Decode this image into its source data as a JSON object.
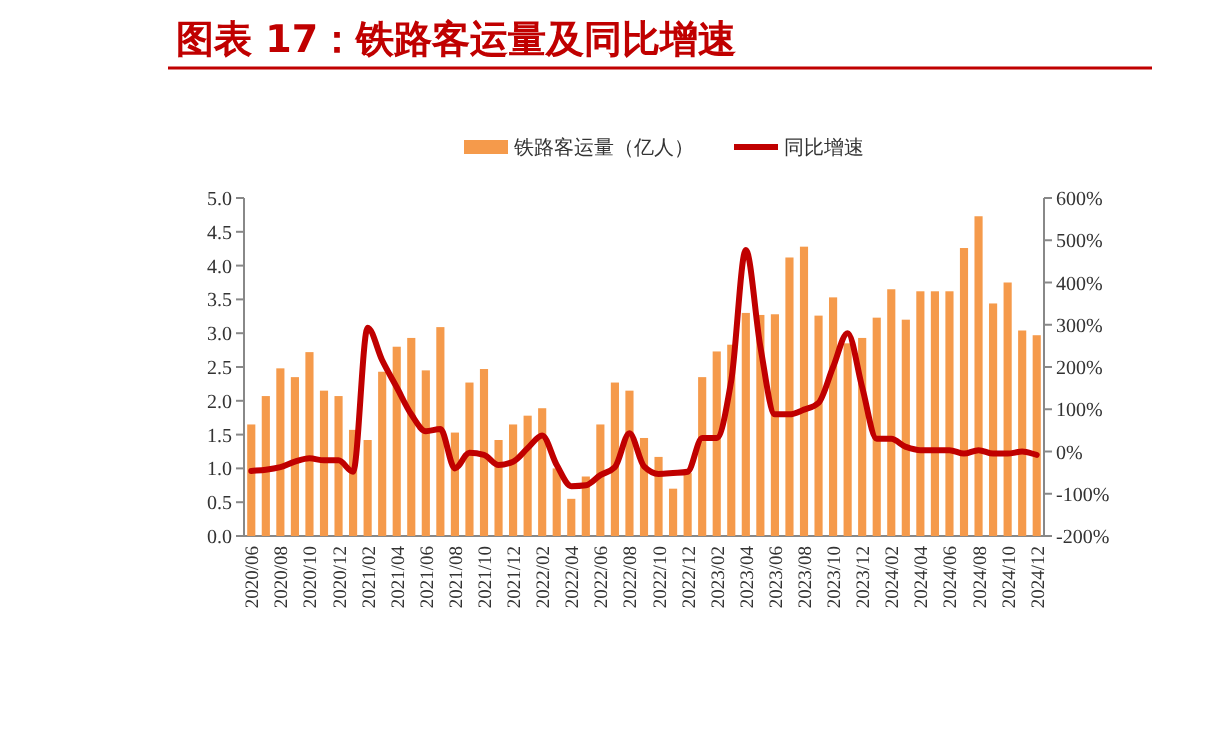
{
  "chart_data": {
    "type": "bar",
    "title": "图表 17：铁路客运量及同比增速",
    "categories": [
      "2020/06",
      null,
      "2020/08",
      null,
      "2020/10",
      null,
      "2020/12",
      null,
      "2021/02",
      null,
      "2021/04",
      null,
      "2021/06",
      null,
      "2021/08",
      null,
      "2021/10",
      null,
      "2021/12",
      null,
      "2022/02",
      null,
      "2022/04",
      null,
      "2022/06",
      null,
      "2022/08",
      null,
      "2022/10",
      null,
      "2022/12",
      null,
      "2023/02",
      null,
      "2023/04",
      null,
      "2023/06",
      null,
      "2023/08",
      null,
      "2023/10",
      null,
      "2023/12",
      null,
      "2024/02",
      null,
      "2024/04",
      null,
      "2024/06",
      null,
      "2024/08",
      null,
      "2024/10",
      null,
      "2024/12"
    ],
    "series": [
      {
        "name": "铁路客运量（亿人）",
        "color": "#f59a4b",
        "values": [
          1.65,
          2.07,
          2.48,
          2.35,
          2.72,
          2.15,
          2.07,
          1.57,
          1.42,
          2.43,
          2.8,
          2.93,
          2.45,
          3.09,
          1.53,
          2.27,
          2.47,
          1.42,
          1.65,
          1.78,
          1.89,
          1.0,
          0.55,
          0.88,
          1.65,
          2.27,
          2.15,
          1.45,
          1.17,
          0.7,
          0.93,
          2.35,
          2.73,
          2.83,
          3.3,
          3.27,
          3.28,
          4.12,
          4.28,
          3.26,
          3.53,
          2.85,
          2.93,
          3.23,
          3.65,
          3.2,
          3.62,
          3.62,
          3.62,
          4.26,
          4.73,
          3.44,
          3.75,
          3.04,
          2.97
        ]
      },
      {
        "name": "同比增速",
        "type": "line",
        "axis": "y2",
        "color": "#c00000",
        "values": [
          -46,
          -43,
          -37,
          -24,
          -16,
          -21,
          -21,
          -48,
          293,
          216,
          152,
          88,
          48,
          53,
          -40,
          -3,
          -8,
          -32,
          -24,
          8,
          38,
          -32,
          -82,
          -80,
          -56,
          -37,
          43,
          -35,
          -53,
          -51,
          -48,
          32,
          32,
          168,
          477,
          248,
          88,
          88,
          99,
          115,
          200,
          280,
          152,
          30,
          30,
          11,
          3,
          3,
          3,
          -5,
          3,
          -5,
          -5,
          0,
          -8
        ]
      }
    ],
    "ylim": [
      0,
      5
    ],
    "yticks": [
      {
        "value": 0,
        "label": "0.0"
      },
      {
        "value": 0.5,
        "label": "0.5"
      },
      {
        "value": 1,
        "label": "1.0"
      },
      {
        "value": 1.5,
        "label": "1.5"
      },
      {
        "value": 2,
        "label": "2.0"
      },
      {
        "value": 2.5,
        "label": "2.5"
      },
      {
        "value": 3,
        "label": "3.0"
      },
      {
        "value": 3.5,
        "label": "3.5"
      },
      {
        "value": 4,
        "label": "4.0"
      },
      {
        "value": 4.5,
        "label": "4.5"
      },
      {
        "value": 5,
        "label": "5.0"
      }
    ],
    "y2lim": [
      -200,
      600
    ],
    "y2ticks": [
      {
        "value": -200,
        "label": "-200%"
      },
      {
        "value": -100,
        "label": "-100%"
      },
      {
        "value": 0,
        "label": "0%"
      },
      {
        "value": 100,
        "label": "100%"
      },
      {
        "value": 200,
        "label": "200%"
      },
      {
        "value": 300,
        "label": "300%"
      },
      {
        "value": 400,
        "label": "400%"
      },
      {
        "value": 500,
        "label": "500%"
      },
      {
        "value": 600,
        "label": "600%"
      }
    ],
    "legend": "top",
    "grid": false,
    "marker": "none",
    "line_style": "solid"
  }
}
